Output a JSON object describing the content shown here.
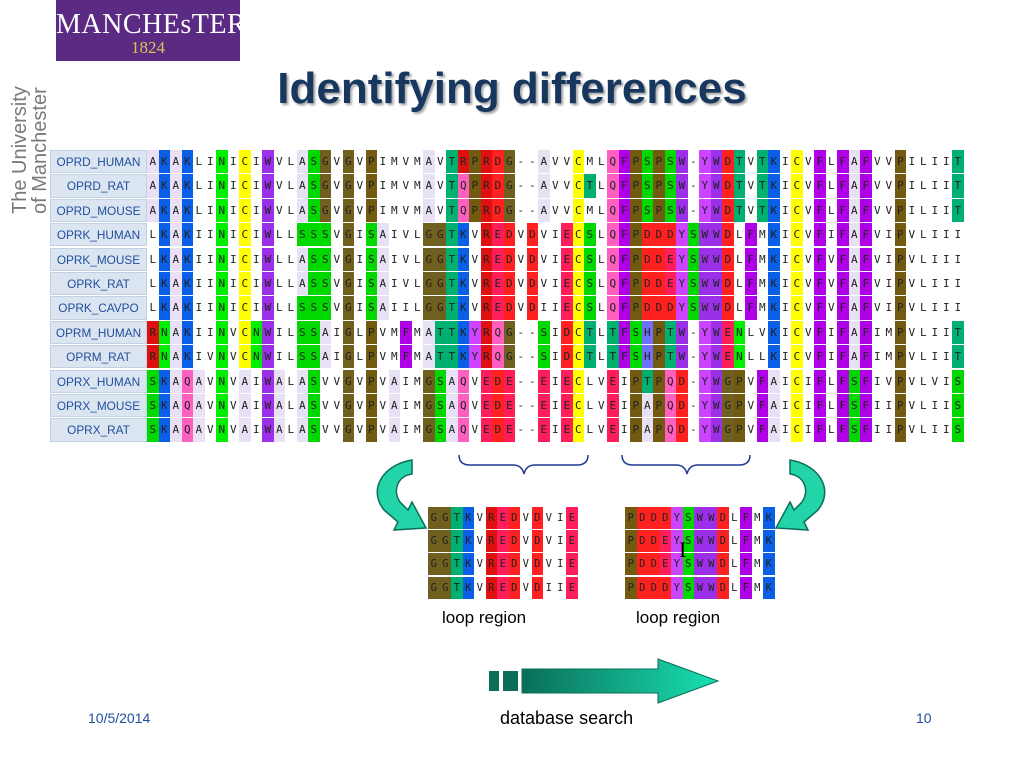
{
  "logo": {
    "name": "MANCHEsTER",
    "year": "1824"
  },
  "university_side": {
    "line1": "The University",
    "line2": "of Manchester"
  },
  "title": "Identifying differences",
  "rows": [
    {
      "name": "OPRD_HUMAN",
      "seq": "AKAKLINICIWVLASGVGVPIMVMAVTRPRDG--AVVCMLQFPSPSW-YWDTVTKICVFLFAFVVPILIIT"
    },
    {
      "name": "OPRD_RAT",
      "seq": "AKAKLINICIWVLASGVGVPIMVMAVTQPRDG--AVVCTLQFPSPSW-YWDTVTKICVFLFAFVVPILIIT"
    },
    {
      "name": "OPRD_MOUSE",
      "seq": "AKAKLINICIWVLASGVGVPIMVMAVTQPRDG--AVVCMLQFPSPSW-YWDTVTKICVFLFAFVVPILIIT"
    },
    {
      "name": "OPRK_HUMAN",
      "seq": "LKAKIINICIWLLSSSVGISAIVLGGTKVREDVDVIECSLQFPDDDYSWWDLFMKICVFIFAFVIPVLIII"
    },
    {
      "name": "OPRK_MOUSE",
      "seq": "LKAKIINICIWLLASSVGISAIVLGGTKVREDVDVIECSLQFPDDEYSWWDLFMKICVFVFAFVIPVLIII"
    },
    {
      "name": "OPRK_RAT",
      "seq": "LKAKIINICIWLLASSVGISAIVLGGTKVREDVDVIECSLQFPDDEYSWWDLFMKICVFVFAFVIPVLIII"
    },
    {
      "name": "OPRK_CAVPO",
      "seq": "LKAKIINICIWLLSSSVGISAIILGGTKVREDVDIIECSLQFPDDDYSWWDLFMKICVFVFAFVIPVLIII"
    },
    {
      "name": "OPRM_HUMAN",
      "seq": "RNAKIINVCNWILSSAIGLPVMFMATTKYRQG--SIDCTLTFSHPTW-YWENLVKICVFIFAFIMPVLIIT"
    },
    {
      "name": "OPRM_RAT",
      "seq": "RNAKIVNVCNWILSSAIGLPVMFMATTKYRQG--SIDCTLTFSHPTW-YWENLLKICVFIFAFIMPVLIIT"
    },
    {
      "name": "OPRX_HUMAN",
      "seq": "SKAQAVNVAIWALASVVGVPVAIMGSAQVEDE--EIECLVEIPTPQD-YWGPVFAICIFLFSFIVPVLVIS"
    },
    {
      "name": "OPRX_MOUSE",
      "seq": "SKAQAVNVAIWALASVVGVPVAIMGSAQVEDE--EIECLVEIPAPQD-YWGPVFAICIFLFSFIIPVLIIS"
    },
    {
      "name": "OPRX_RAT",
      "seq": "SKAQAVNVAIWALASVVGVPVAIMGSAQVEDE--EIECLVEIPAPQD-YWGPVFAICIFLFSFIIPVLIIS"
    }
  ],
  "loop_left": [
    "GGTKVREDVDVIE",
    "GGTKVREDVDVIE",
    "GGTKVREDVDVIE",
    "GGTKVREDVDIIE"
  ],
  "loop_right": [
    "PDDDYSWWDLFMK",
    "PDDEYSWWDLFMK",
    "PDDEYSWWDLFMK",
    "PDDDYSWWDLFMK"
  ],
  "loop_caption_left": "loop region",
  "loop_caption_right": "loop region",
  "database_search": "database search",
  "footer": {
    "date": "10/5/2014",
    "page": "10"
  },
  "colors": {
    "title": "#17375e",
    "logo_bg": "#5b2a82",
    "name_box": "#dbe5f1",
    "arrow": "#00c8a0",
    "bracket": "#1f3a93",
    "residue_colors": {
      "A": "#e8e0f4",
      "K": "#0a5fe8",
      "L": "#ffffff",
      "I": "#ffffff",
      "V": "#ffffff",
      "M": "#ffffff",
      "N": "#00ee00",
      "C": "#ffff00",
      "W": "#9c2fe8",
      "S": "#00d800",
      "G": "#706020",
      "P": "#725a10",
      "T": "#00b070",
      "R": "#e01010",
      "D": "#ff2020",
      "E": "#ff1e5a",
      "Q": "#ff60c0",
      "F": "#b000e8",
      "Y": "#cc44ff",
      "H": "#7070ff",
      "-": "#ffffff"
    }
  }
}
